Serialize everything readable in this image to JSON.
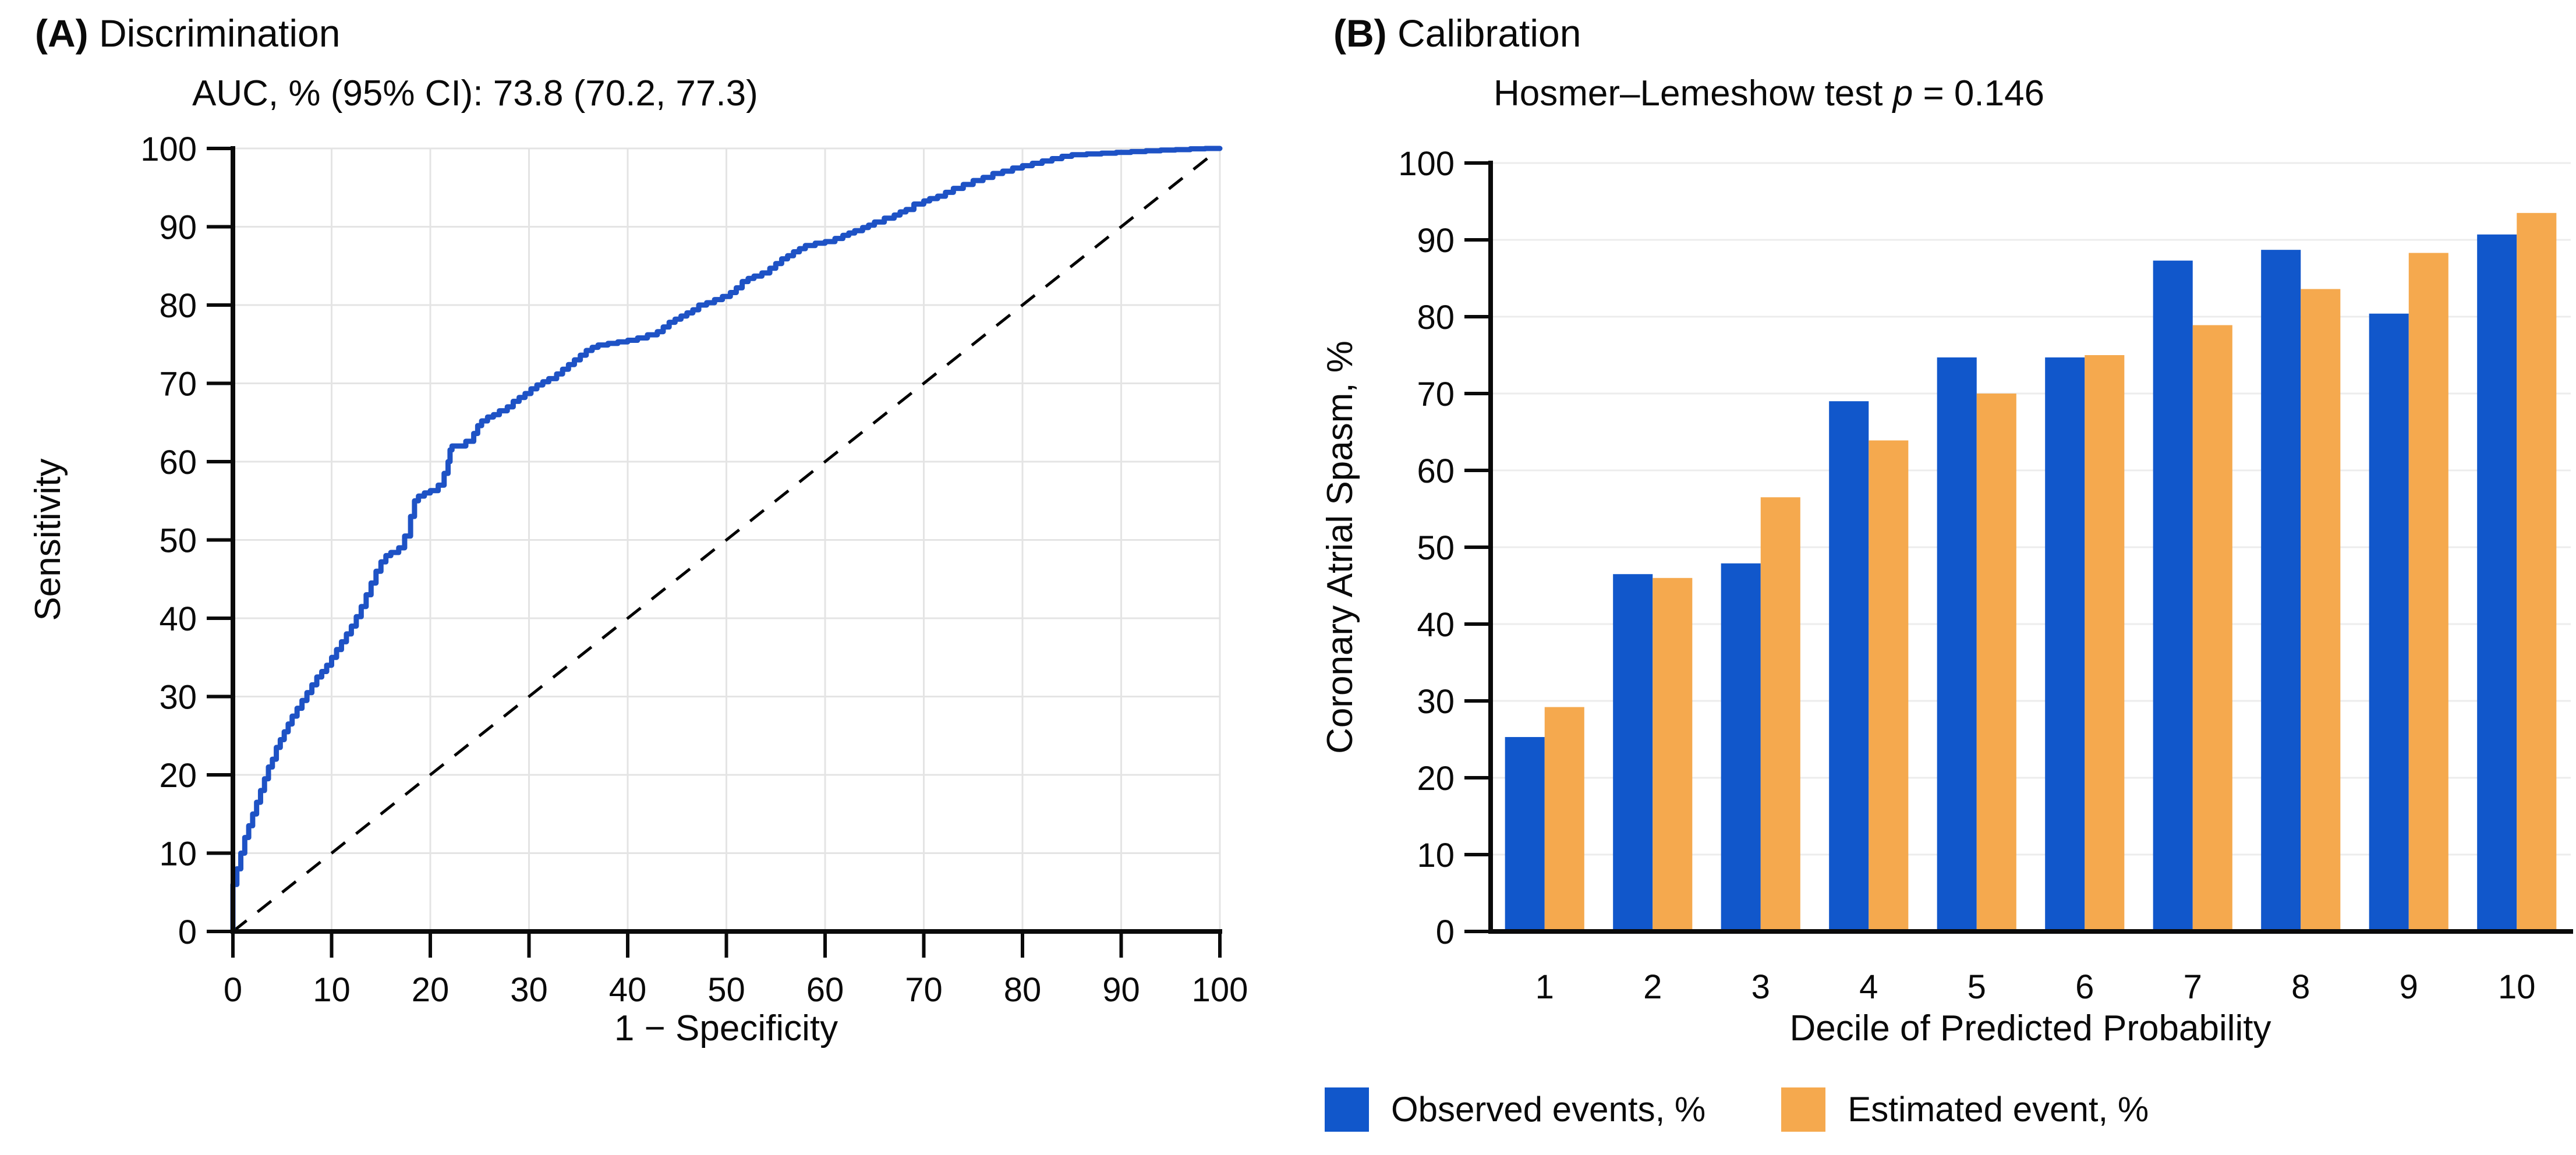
{
  "figure": {
    "panel_a": {
      "tag": "(A)",
      "title": " Discrimination",
      "subtitle": "AUC, % (95% CI): 73.8 (70.2, 77.3)"
    },
    "panel_b": {
      "tag": "(B)",
      "title": " Calibration",
      "subtitle_prefix": "Hosmer–Lemeshow test ",
      "subtitle_p": "p",
      "subtitle_suffix": " = 0.146"
    }
  },
  "colors": {
    "roc_curve": "#1E52C5",
    "observed_bar": "#1157CB",
    "estimated_bar": "#F5A94E",
    "axis": "#0a0a0a",
    "grid_a": "#e4e4e4",
    "grid_b": "#ececec",
    "reference_line": "#000000"
  },
  "chart_data": [
    {
      "type": "line",
      "panel": "A",
      "title": "(A) Discrimination",
      "subtitle": "AUC, % (95% CI): 73.8 (70.2, 77.3)",
      "xlabel": "1 − Specificity",
      "ylabel": "Sensitivity",
      "xlim": [
        0,
        100
      ],
      "ylim": [
        0,
        100
      ],
      "xticks": [
        0,
        10,
        20,
        30,
        40,
        50,
        60,
        70,
        80,
        90,
        100
      ],
      "yticks": [
        0,
        10,
        20,
        30,
        40,
        50,
        60,
        70,
        80,
        90,
        100
      ],
      "grid": "both",
      "reference_diagonal": true,
      "series": [
        {
          "name": "ROC curve",
          "style": "step",
          "points": [
            [
              0,
              0
            ],
            [
              0,
              4.5
            ],
            [
              0.4,
              6
            ],
            [
              0.8,
              8
            ],
            [
              1.2,
              10
            ],
            [
              1.6,
              12
            ],
            [
              2,
              13.5
            ],
            [
              2.4,
              15
            ],
            [
              2.8,
              16.5
            ],
            [
              3.2,
              18
            ],
            [
              3.6,
              19.5
            ],
            [
              4,
              21
            ],
            [
              4.4,
              22
            ],
            [
              4.8,
              23.5
            ],
            [
              5.2,
              24.5
            ],
            [
              5.6,
              25.5
            ],
            [
              6,
              26.5
            ],
            [
              6.5,
              27.5
            ],
            [
              7,
              28.5
            ],
            [
              7.5,
              29.5
            ],
            [
              8,
              30.5
            ],
            [
              8.5,
              31.5
            ],
            [
              9,
              32.5
            ],
            [
              9.5,
              33.2
            ],
            [
              10,
              34
            ],
            [
              10.5,
              35
            ],
            [
              11,
              36
            ],
            [
              11.5,
              37
            ],
            [
              12,
              38
            ],
            [
              12.5,
              39
            ],
            [
              13,
              40.2
            ],
            [
              13.5,
              41.5
            ],
            [
              14,
              43
            ],
            [
              14.5,
              44.5
            ],
            [
              15,
              46
            ],
            [
              15.5,
              47.2
            ],
            [
              16,
              48
            ],
            [
              16.8,
              48.4
            ],
            [
              17.4,
              49
            ],
            [
              18,
              50.5
            ],
            [
              18.4,
              53
            ],
            [
              18.8,
              55
            ],
            [
              19.4,
              55.6
            ],
            [
              20,
              56
            ],
            [
              20.8,
              56.3
            ],
            [
              21.4,
              57
            ],
            [
              21.8,
              58.5
            ],
            [
              22,
              60
            ],
            [
              22.2,
              61.5
            ],
            [
              22.6,
              62
            ],
            [
              23.6,
              62
            ],
            [
              24.4,
              62.6
            ],
            [
              24.8,
              63.6
            ],
            [
              25.2,
              64.6
            ],
            [
              25.8,
              65.2
            ],
            [
              26.4,
              65.7
            ],
            [
              27,
              66
            ],
            [
              27.8,
              66.5
            ],
            [
              28.4,
              67
            ],
            [
              29,
              67.7
            ],
            [
              29.6,
              68.2
            ],
            [
              30.2,
              68.7
            ],
            [
              30.8,
              69.3
            ],
            [
              31.4,
              69.8
            ],
            [
              32,
              70.2
            ],
            [
              32.8,
              70.6
            ],
            [
              33.4,
              71.2
            ],
            [
              34,
              71.8
            ],
            [
              34.6,
              72.4
            ],
            [
              35.2,
              73
            ],
            [
              35.8,
              73.6
            ],
            [
              36.4,
              74.2
            ],
            [
              37,
              74.6
            ],
            [
              38,
              74.9
            ],
            [
              39,
              75.1
            ],
            [
              40,
              75.3
            ],
            [
              41,
              75.5
            ],
            [
              42,
              75.8
            ],
            [
              43,
              76.2
            ],
            [
              43.6,
              76.6
            ],
            [
              44.2,
              77.2
            ],
            [
              44.8,
              77.8
            ],
            [
              45.4,
              78.2
            ],
            [
              46,
              78.6
            ],
            [
              46.6,
              79
            ],
            [
              47.2,
              79.4
            ],
            [
              48,
              80
            ],
            [
              48.8,
              80.3
            ],
            [
              49.6,
              80.7
            ],
            [
              50.4,
              81.1
            ],
            [
              51,
              81.6
            ],
            [
              51.6,
              82.2
            ],
            [
              52.2,
              83
            ],
            [
              52.8,
              83.4
            ],
            [
              53.6,
              83.7
            ],
            [
              54.4,
              84.1
            ],
            [
              55,
              84.7
            ],
            [
              55.6,
              85.3
            ],
            [
              56.2,
              85.9
            ],
            [
              56.8,
              86.3
            ],
            [
              57.4,
              86.8
            ],
            [
              58,
              87.2
            ],
            [
              59,
              87.6
            ],
            [
              60,
              87.9
            ],
            [
              61,
              88.1
            ],
            [
              61.8,
              88.5
            ],
            [
              62.4,
              88.9
            ],
            [
              63,
              89.2
            ],
            [
              63.8,
              89.5
            ],
            [
              64.4,
              89.9
            ],
            [
              65,
              90.2
            ],
            [
              66,
              90.6
            ],
            [
              67,
              91.1
            ],
            [
              67.6,
              91.5
            ],
            [
              68.2,
              91.9
            ],
            [
              69,
              92.2
            ],
            [
              70,
              92.9
            ],
            [
              70.6,
              93.3
            ],
            [
              71.4,
              93.6
            ],
            [
              72.2,
              93.9
            ],
            [
              73,
              94.4
            ],
            [
              74,
              94.9
            ],
            [
              75,
              95.4
            ],
            [
              76,
              95.9
            ],
            [
              77,
              96.3
            ],
            [
              78,
              96.8
            ],
            [
              79,
              97.1
            ],
            [
              80,
              97.5
            ],
            [
              81,
              97.8
            ],
            [
              82,
              98.1
            ],
            [
              83,
              98.4
            ],
            [
              84,
              98.7
            ],
            [
              85,
              99
            ],
            [
              86.5,
              99.2
            ],
            [
              88,
              99.3
            ],
            [
              89.5,
              99.4
            ],
            [
              91,
              99.5
            ],
            [
              92.5,
              99.6
            ],
            [
              94,
              99.7
            ],
            [
              95.5,
              99.8
            ],
            [
              97,
              99.85
            ],
            [
              98.5,
              99.95
            ],
            [
              100,
              100
            ]
          ]
        }
      ]
    },
    {
      "type": "bar",
      "panel": "B",
      "title": "(B) Calibration",
      "subtitle": "Hosmer–Lemeshow test p = 0.146",
      "xlabel": "Decile of Predicted Probability",
      "ylabel": "Coronary Atrial Spasm, %",
      "ylim": [
        0,
        100
      ],
      "yticks": [
        0,
        10,
        20,
        30,
        40,
        50,
        60,
        70,
        80,
        90,
        100
      ],
      "grid": "horizontal",
      "categories": [
        "1",
        "2",
        "3",
        "4",
        "5",
        "6",
        "7",
        "8",
        "9",
        "10"
      ],
      "series": [
        {
          "name": "Observed events, %",
          "values": [
            25.3,
            46.5,
            47.9,
            69.0,
            74.7,
            74.7,
            87.3,
            88.7,
            80.4,
            90.7
          ]
        },
        {
          "name": "Estimated event, %",
          "values": [
            29.2,
            46.0,
            56.5,
            63.9,
            70.0,
            75.0,
            78.9,
            83.6,
            88.3,
            93.5
          ]
        }
      ],
      "legend_position": "bottom"
    }
  ]
}
